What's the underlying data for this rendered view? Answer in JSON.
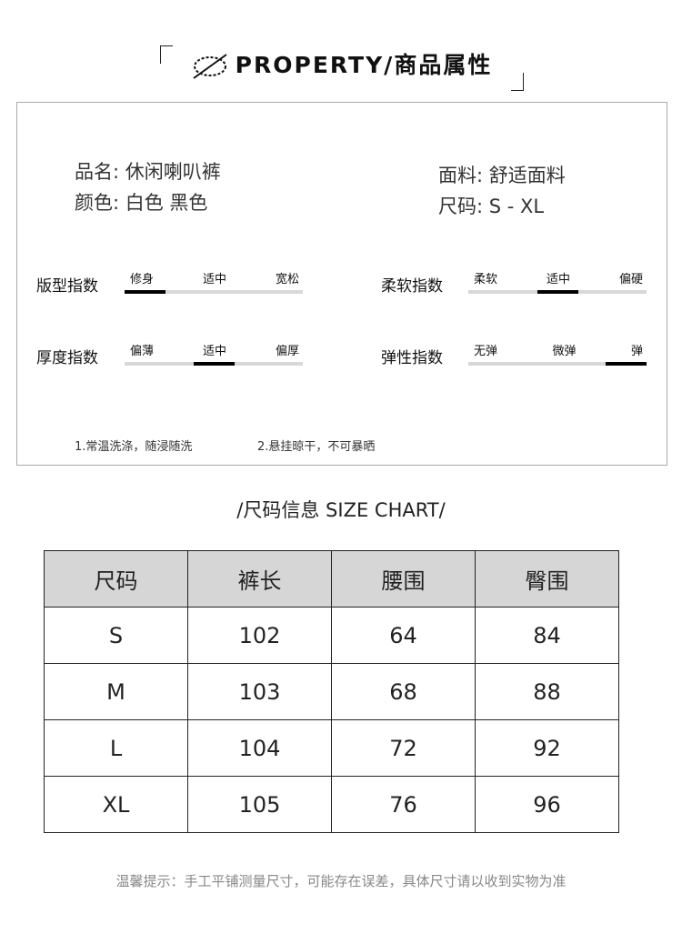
{
  "header": {
    "title": "PROPERTY/商品属性",
    "icon": "leaf-slash-icon"
  },
  "info": {
    "left": [
      "品名: 休闲喇叭裤",
      "颜色: 白色 黑色"
    ],
    "right": [
      "面料: 舒适面料",
      "尺码: S - XL"
    ]
  },
  "scales": [
    {
      "label": "版型指数",
      "options": [
        "修身",
        "适中",
        "宽松"
      ],
      "selected": 0
    },
    {
      "label": "柔软指数",
      "options": [
        "柔软",
        "适中",
        "偏硬"
      ],
      "selected": 1
    },
    {
      "label": "厚度指数",
      "options": [
        "偏薄",
        "适中",
        "偏厚"
      ],
      "selected": 1
    },
    {
      "label": "弹性指数",
      "options": [
        "无弹",
        "微弹",
        "弹"
      ],
      "selected": 2
    }
  ],
  "notes": [
    "1.常温洗涤，随浸随洗",
    "2.悬挂晾干，不可暴晒"
  ],
  "size_chart": {
    "title": "/尺码信息 SIZE CHART/",
    "headers": [
      "尺码",
      "裤长",
      "腰围",
      "臀围"
    ],
    "rows": [
      [
        "S",
        "102",
        "64",
        "84"
      ],
      [
        "M",
        "103",
        "68",
        "88"
      ],
      [
        "L",
        "104",
        "72",
        "92"
      ],
      [
        "XL",
        "105",
        "76",
        "96"
      ]
    ]
  },
  "footer": "温馨提示：手工平铺测量尺寸，可能存在误差，具体尺寸请以收到实物为准"
}
